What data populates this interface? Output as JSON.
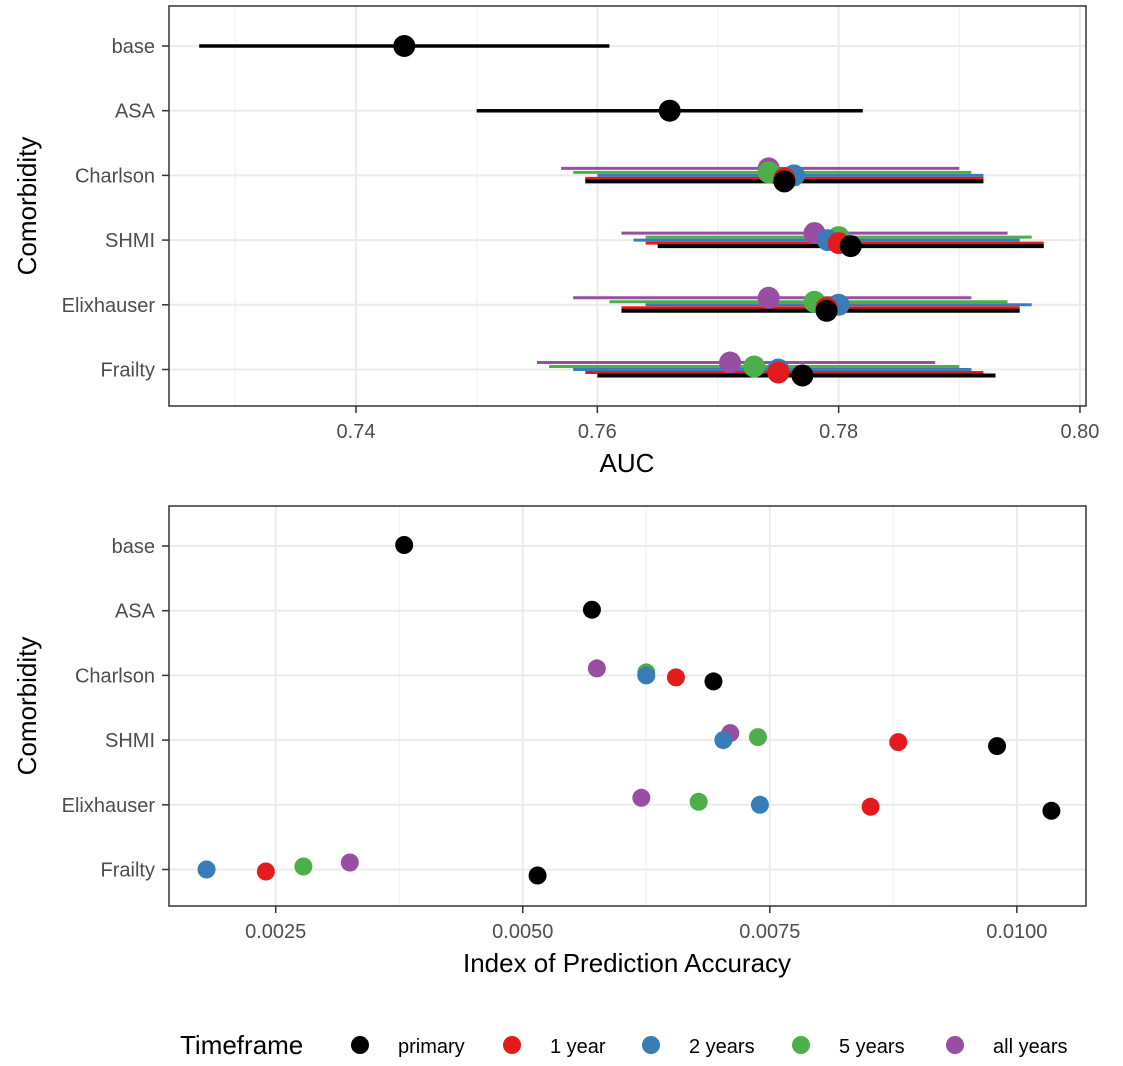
{
  "colors": {
    "primary": "#000000",
    "1 year": "#E41A1C",
    "2 years": "#377EB8",
    "5 years": "#4DAF4A",
    "all years": "#984EA3"
  },
  "legend": {
    "title": "Timeframe",
    "position": "bottom",
    "items": [
      "primary",
      "1 year",
      "2 years",
      "5 years",
      "all years"
    ]
  },
  "chart_data": [
    {
      "type": "scatter",
      "subtype": "point-range",
      "xlabel": "AUC",
      "ylabel": "Comorbidity",
      "xlim": [
        0.7245,
        0.8005
      ],
      "xticks": [
        0.74,
        0.76,
        0.78,
        0.8
      ],
      "xtick_labels": [
        "0.74",
        "0.76",
        "0.78",
        "0.80"
      ],
      "categories": [
        "base",
        "ASA",
        "Charlson",
        "SHMI",
        "Elixhauser",
        "Frailty"
      ],
      "grid": true,
      "points": [
        {
          "category": "base",
          "timeframe": "primary",
          "auc": 0.744,
          "lo": 0.727,
          "hi": 0.761
        },
        {
          "category": "ASA",
          "timeframe": "primary",
          "auc": 0.766,
          "lo": 0.75,
          "hi": 0.782
        },
        {
          "category": "Charlson",
          "timeframe": "primary",
          "auc": 0.7755,
          "lo": 0.759,
          "hi": 0.792
        },
        {
          "category": "Charlson",
          "timeframe": "1 year",
          "auc": 0.7755,
          "lo": 0.759,
          "hi": 0.792
        },
        {
          "category": "Charlson",
          "timeframe": "2 years",
          "auc": 0.7763,
          "lo": 0.76,
          "hi": 0.792
        },
        {
          "category": "Charlson",
          "timeframe": "5 years",
          "auc": 0.7742,
          "lo": 0.758,
          "hi": 0.791
        },
        {
          "category": "Charlson",
          "timeframe": "all years",
          "auc": 0.7742,
          "lo": 0.757,
          "hi": 0.79
        },
        {
          "category": "SHMI",
          "timeframe": "primary",
          "auc": 0.781,
          "lo": 0.765,
          "hi": 0.797
        },
        {
          "category": "SHMI",
          "timeframe": "1 year",
          "auc": 0.78,
          "lo": 0.764,
          "hi": 0.797
        },
        {
          "category": "SHMI",
          "timeframe": "2 years",
          "auc": 0.7791,
          "lo": 0.763,
          "hi": 0.795
        },
        {
          "category": "SHMI",
          "timeframe": "5 years",
          "auc": 0.78,
          "lo": 0.764,
          "hi": 0.796
        },
        {
          "category": "SHMI",
          "timeframe": "all years",
          "auc": 0.778,
          "lo": 0.762,
          "hi": 0.794
        },
        {
          "category": "Elixhauser",
          "timeframe": "primary",
          "auc": 0.779,
          "lo": 0.762,
          "hi": 0.795
        },
        {
          "category": "Elixhauser",
          "timeframe": "1 year",
          "auc": 0.779,
          "lo": 0.762,
          "hi": 0.795
        },
        {
          "category": "Elixhauser",
          "timeframe": "2 years",
          "auc": 0.78,
          "lo": 0.764,
          "hi": 0.796
        },
        {
          "category": "Elixhauser",
          "timeframe": "5 years",
          "auc": 0.778,
          "lo": 0.761,
          "hi": 0.794
        },
        {
          "category": "Elixhauser",
          "timeframe": "all years",
          "auc": 0.7742,
          "lo": 0.758,
          "hi": 0.791
        },
        {
          "category": "Frailty",
          "timeframe": "primary",
          "auc": 0.777,
          "lo": 0.76,
          "hi": 0.793
        },
        {
          "category": "Frailty",
          "timeframe": "1 year",
          "auc": 0.775,
          "lo": 0.759,
          "hi": 0.792
        },
        {
          "category": "Frailty",
          "timeframe": "2 years",
          "auc": 0.775,
          "lo": 0.758,
          "hi": 0.791
        },
        {
          "category": "Frailty",
          "timeframe": "5 years",
          "auc": 0.773,
          "lo": 0.756,
          "hi": 0.79
        },
        {
          "category": "Frailty",
          "timeframe": "all years",
          "auc": 0.771,
          "lo": 0.755,
          "hi": 0.788
        }
      ]
    },
    {
      "type": "scatter",
      "xlabel": "Index of Prediction Accuracy",
      "ylabel": "Comorbidity",
      "xlim": [
        0.00142,
        0.0107
      ],
      "xticks": [
        0.0025,
        0.005,
        0.0075,
        0.01
      ],
      "xtick_labels": [
        "0.0025",
        "0.0050",
        "0.0075",
        "0.0100"
      ],
      "categories": [
        "base",
        "ASA",
        "Charlson",
        "SHMI",
        "Elixhauser",
        "Frailty"
      ],
      "grid": true,
      "points": [
        {
          "category": "base",
          "timeframe": "primary",
          "value": 0.0038
        },
        {
          "category": "ASA",
          "timeframe": "primary",
          "value": 0.0057
        },
        {
          "category": "Charlson",
          "timeframe": "primary",
          "value": 0.00693
        },
        {
          "category": "Charlson",
          "timeframe": "1 year",
          "value": 0.00655
        },
        {
          "category": "Charlson",
          "timeframe": "2 years",
          "value": 0.00625
        },
        {
          "category": "Charlson",
          "timeframe": "5 years",
          "value": 0.00625
        },
        {
          "category": "Charlson",
          "timeframe": "all years",
          "value": 0.00575
        },
        {
          "category": "SHMI",
          "timeframe": "primary",
          "value": 0.0098
        },
        {
          "category": "SHMI",
          "timeframe": "1 year",
          "value": 0.0088
        },
        {
          "category": "SHMI",
          "timeframe": "2 years",
          "value": 0.00703
        },
        {
          "category": "SHMI",
          "timeframe": "5 years",
          "value": 0.00738
        },
        {
          "category": "SHMI",
          "timeframe": "all years",
          "value": 0.0071
        },
        {
          "category": "Elixhauser",
          "timeframe": "primary",
          "value": 0.01035
        },
        {
          "category": "Elixhauser",
          "timeframe": "1 year",
          "value": 0.00852
        },
        {
          "category": "Elixhauser",
          "timeframe": "2 years",
          "value": 0.0074
        },
        {
          "category": "Elixhauser",
          "timeframe": "5 years",
          "value": 0.00678
        },
        {
          "category": "Elixhauser",
          "timeframe": "all years",
          "value": 0.0062
        },
        {
          "category": "Frailty",
          "timeframe": "primary",
          "value": 0.00515
        },
        {
          "category": "Frailty",
          "timeframe": "1 year",
          "value": 0.0024
        },
        {
          "category": "Frailty",
          "timeframe": "2 years",
          "value": 0.0018
        },
        {
          "category": "Frailty",
          "timeframe": "5 years",
          "value": 0.00278
        },
        {
          "category": "Frailty",
          "timeframe": "all years",
          "value": 0.00325
        }
      ]
    }
  ]
}
